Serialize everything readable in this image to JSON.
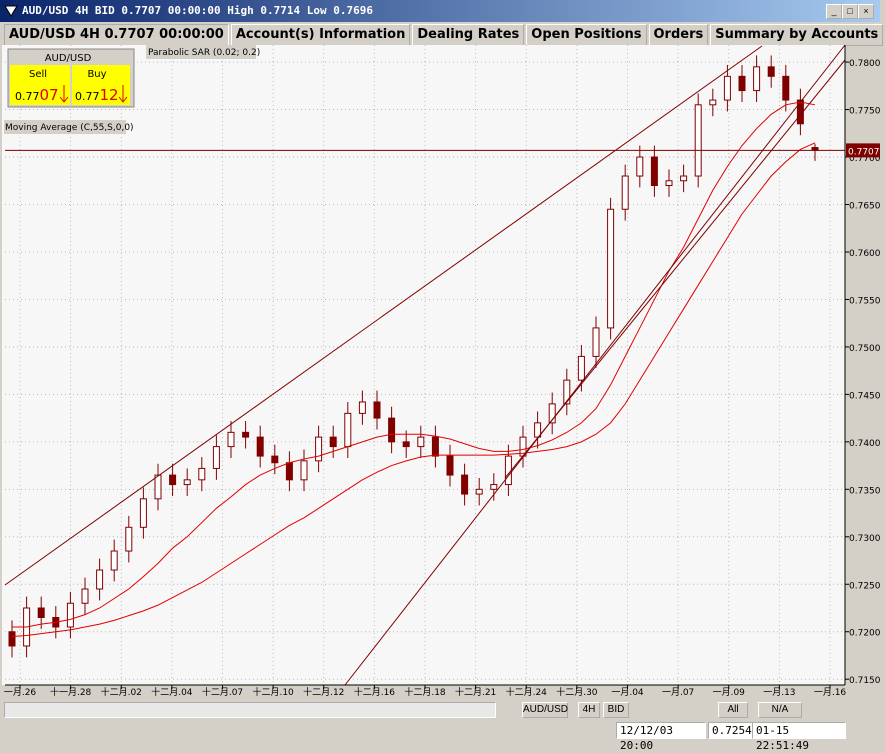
{
  "window": {
    "title": "AUD/USD 4H BID 0.7707 00:00:00 High 0.7714 Low 0.7696"
  },
  "tabs": [
    "AUD/USD 4H 0.7707 00:00:00",
    "Account(s) Information",
    "Dealing Rates",
    "Open Positions",
    "Orders",
    "Summary by Accounts"
  ],
  "quote": {
    "symbol": "AUD/USD",
    "sell_label": "Sell",
    "buy_label": "Buy",
    "sell_prefix": "0.77",
    "sell_pips": "07",
    "buy_prefix": "0.77",
    "buy_pips": "12"
  },
  "indicators": [
    "Parabolic SAR (0.02; 0.2)",
    "Moving Average (C,55,S,0,0)"
  ],
  "toolbar": [
    "AUD/USD",
    "4H",
    "BID",
    "All",
    "N/A"
  ],
  "status": [
    "12/12/03 20:00",
    "0.7254",
    "01-15 22:51:49"
  ],
  "chart_data": {
    "type": "candlestick",
    "open": [
      0.72,
      0.7185,
      0.7225,
      0.7215,
      0.7205,
      0.723,
      0.7245,
      0.7265,
      0.7285,
      0.731,
      0.734,
      0.7365,
      0.7355,
      0.736,
      0.7372,
      0.7395,
      0.741,
      0.7405,
      0.7385,
      0.7378,
      0.736,
      0.738,
      0.7405,
      0.7395,
      0.743,
      0.7442,
      0.7425,
      0.74,
      0.7395,
      0.7405,
      0.7385,
      0.7365,
      0.7345,
      0.735,
      0.7355,
      0.7385,
      0.7405,
      0.742,
      0.744,
      0.7465,
      0.749,
      0.752,
      0.7645,
      0.768,
      0.77,
      0.767,
      0.7675,
      0.768,
      0.7755,
      0.776,
      0.7785,
      0.777,
      0.7795,
      0.7785,
      0.776,
      0.771
    ],
    "high": [
      0.7212,
      0.7237,
      0.7237,
      0.7227,
      0.7242,
      0.7257,
      0.7277,
      0.7297,
      0.7322,
      0.7352,
      0.7377,
      0.7377,
      0.7372,
      0.7384,
      0.7407,
      0.7422,
      0.7422,
      0.7417,
      0.7397,
      0.739,
      0.7392,
      0.7417,
      0.7417,
      0.7442,
      0.7454,
      0.7454,
      0.7437,
      0.7412,
      0.7417,
      0.7417,
      0.7397,
      0.7377,
      0.7362,
      0.7367,
      0.7397,
      0.7417,
      0.7432,
      0.7452,
      0.7477,
      0.7502,
      0.7532,
      0.7657,
      0.7692,
      0.7712,
      0.7712,
      0.7687,
      0.7692,
      0.7767,
      0.7772,
      0.7797,
      0.7797,
      0.7807,
      0.7807,
      0.7797,
      0.7772,
      0.7714
    ],
    "low": [
      0.7173,
      0.7173,
      0.7203,
      0.7193,
      0.7193,
      0.7218,
      0.7233,
      0.7253,
      0.7273,
      0.7298,
      0.7328,
      0.7343,
      0.7343,
      0.7348,
      0.736,
      0.7383,
      0.7393,
      0.7373,
      0.7366,
      0.7348,
      0.7348,
      0.7368,
      0.7383,
      0.7383,
      0.7418,
      0.7413,
      0.7388,
      0.7383,
      0.7383,
      0.7373,
      0.7353,
      0.7333,
      0.7333,
      0.7338,
      0.7343,
      0.7373,
      0.7393,
      0.7408,
      0.7428,
      0.7453,
      0.7478,
      0.7508,
      0.7633,
      0.7668,
      0.7658,
      0.7658,
      0.7663,
      0.7668,
      0.7743,
      0.7748,
      0.7758,
      0.7758,
      0.7773,
      0.7748,
      0.7723,
      0.7696
    ],
    "close": [
      0.7185,
      0.7225,
      0.7215,
      0.7205,
      0.723,
      0.7245,
      0.7265,
      0.7285,
      0.731,
      0.734,
      0.7365,
      0.7355,
      0.736,
      0.7372,
      0.7395,
      0.741,
      0.7405,
      0.7385,
      0.7378,
      0.736,
      0.738,
      0.7405,
      0.7395,
      0.743,
      0.7442,
      0.7425,
      0.74,
      0.7395,
      0.7405,
      0.7385,
      0.7365,
      0.7345,
      0.735,
      0.7355,
      0.7385,
      0.7405,
      0.742,
      0.744,
      0.7465,
      0.749,
      0.752,
      0.7645,
      0.768,
      0.77,
      0.767,
      0.7675,
      0.768,
      0.7755,
      0.776,
      0.7785,
      0.777,
      0.7795,
      0.7785,
      0.776,
      0.7735,
      0.7707
    ],
    "overlays": [
      {
        "color": "#e00000",
        "values": [
          0.7205,
          0.7205,
          0.7208,
          0.721,
          0.7213,
          0.7218,
          0.7225,
          0.7235,
          0.7245,
          0.7258,
          0.7272,
          0.7288,
          0.73,
          0.7315,
          0.733,
          0.7342,
          0.7355,
          0.7365,
          0.7372,
          0.7378,
          0.7382,
          0.7385,
          0.739,
          0.7395,
          0.74,
          0.7405,
          0.7408,
          0.7408,
          0.7408,
          0.7406,
          0.7403,
          0.7398,
          0.7393,
          0.739,
          0.739,
          0.7392,
          0.7396,
          0.7402,
          0.741,
          0.742,
          0.7435,
          0.746,
          0.749,
          0.752,
          0.755,
          0.758,
          0.7605,
          0.7635,
          0.7665,
          0.769,
          0.7712,
          0.773,
          0.7745,
          0.7755,
          0.7758,
          0.7755
        ]
      },
      {
        "color": "#e00000",
        "values": [
          0.7195,
          0.7196,
          0.7198,
          0.72,
          0.7202,
          0.7205,
          0.7208,
          0.7212,
          0.7217,
          0.7222,
          0.7228,
          0.7236,
          0.7244,
          0.7252,
          0.7262,
          0.7272,
          0.7282,
          0.7292,
          0.7302,
          0.7312,
          0.732,
          0.733,
          0.734,
          0.735,
          0.736,
          0.7368,
          0.7375,
          0.738,
          0.7384,
          0.7386,
          0.7386,
          0.7386,
          0.7386,
          0.7386,
          0.7387,
          0.7388,
          0.739,
          0.7392,
          0.7395,
          0.74,
          0.7408,
          0.742,
          0.744,
          0.7465,
          0.749,
          0.7515,
          0.754,
          0.7565,
          0.759,
          0.7615,
          0.764,
          0.766,
          0.768,
          0.7695,
          0.7708,
          0.7715
        ]
      }
    ],
    "candle_color": "#800000",
    "current_price": 0.7707,
    "ylim": [
      0.7146,
      0.7818
    ],
    "yticks": [
      {
        "value": 0.715,
        "label": "0.7150"
      },
      {
        "value": 0.72,
        "label": "0.7200"
      },
      {
        "value": 0.725,
        "label": "0.7250"
      },
      {
        "value": 0.73,
        "label": "0.7300"
      },
      {
        "value": 0.735,
        "label": "0.7350"
      },
      {
        "value": 0.74,
        "label": "0.7400"
      },
      {
        "value": 0.745,
        "label": "0.7450"
      },
      {
        "value": 0.75,
        "label": "0.7500"
      },
      {
        "value": 0.755,
        "label": "0.7550"
      },
      {
        "value": 0.76,
        "label": "0.7600"
      },
      {
        "value": 0.765,
        "label": "0.7650"
      },
      {
        "value": 0.77,
        "label": "0.7700"
      },
      {
        "value": 0.775,
        "label": "0.7750"
      },
      {
        "value": 0.78,
        "label": "0.7800"
      }
    ],
    "xticks": [
      "一月.26",
      "十一月.28",
      "十二月.02",
      "十二月.04",
      "十二月.07",
      "十二月.10",
      "十二月.12",
      "十二月.16",
      "十二月.18",
      "十二月.21",
      "十二月.24",
      "十二月.30",
      "一月.04",
      "一月.07",
      "一月.09",
      "一月.13",
      "一月.16"
    ],
    "grid": true
  }
}
